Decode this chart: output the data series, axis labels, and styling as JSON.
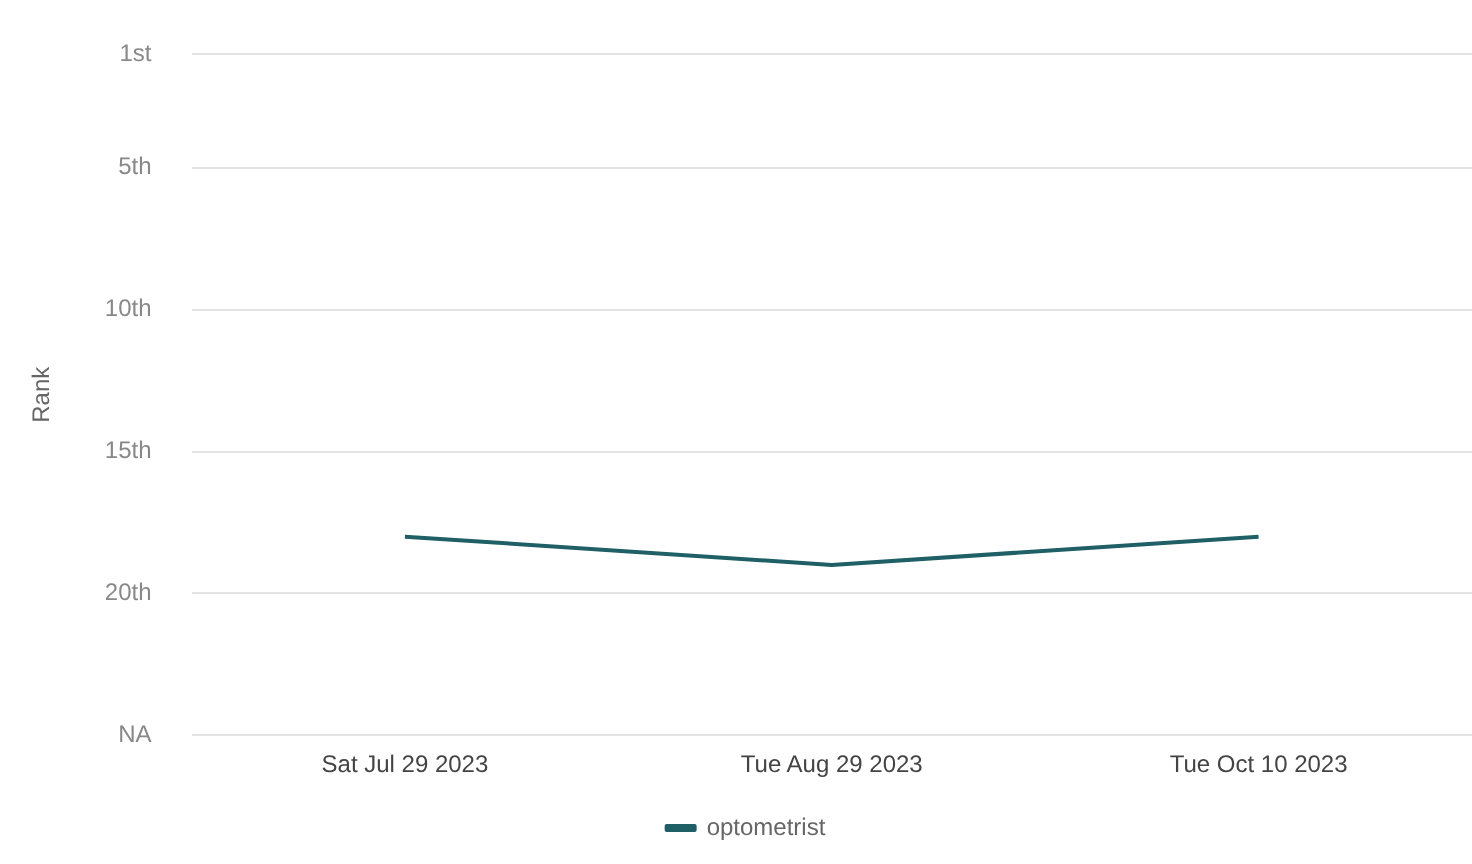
{
  "chart_data": {
    "type": "line",
    "ylabel": "Rank",
    "categories": [
      "Sat Jul 29 2023",
      "Tue Aug 29 2023",
      "Tue Oct 10 2023"
    ],
    "series": [
      {
        "name": "optometrist",
        "color": "#1f5f66",
        "values": [
          18,
          19,
          18
        ]
      }
    ],
    "ylim": [
      25,
      1
    ],
    "yticks": [
      {
        "value": 1,
        "label": "1st"
      },
      {
        "value": 5,
        "label": "5th"
      },
      {
        "value": 10,
        "label": "10th"
      },
      {
        "value": 15,
        "label": "15th"
      },
      {
        "value": 20,
        "label": "20th"
      },
      {
        "value": 25,
        "label": "NA"
      }
    ],
    "grid": "y",
    "legend": "bottom",
    "marker": "none",
    "line_style": "solid"
  }
}
